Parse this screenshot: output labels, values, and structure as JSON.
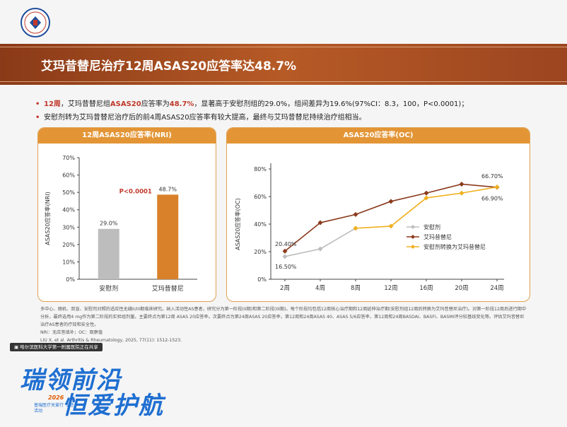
{
  "header": {
    "title": "艾玛昔替尼治疗12周ASAS20应答率达48.7%"
  },
  "bullets": [
    {
      "parts": [
        {
          "text": "12周",
          "highlight": true
        },
        {
          "text": "，艾玛昔替尼组",
          "highlight": false
        },
        {
          "text": "ASAS20",
          "highlight": true
        },
        {
          "text": "应答率为",
          "highlight": false
        },
        {
          "text": "48.7%",
          "highlight": true
        },
        {
          "text": "，显著高于安慰剂组的29.0%，组间差异为19.6%(97%CI：8.3，100，P<0.0001)；",
          "highlight": false
        }
      ]
    },
    {
      "parts": [
        {
          "text": "安慰剂转为艾玛昔替尼治疗后的前4周ASAS20应答率有较大提高，最终与艾玛昔替尼持续治疗组相当。",
          "highlight": false
        }
      ]
    }
  ],
  "left_panel": {
    "header": "12周ASAS20应答率(NRI)"
  },
  "right_panel": {
    "header": "ASAS20应答率(OC)"
  },
  "chart_data": [
    {
      "type": "bar",
      "title": "12周ASAS20应答率(NRI)",
      "ylabel": "ASAS20应答率(NRI)",
      "xlabel": "",
      "categories": [
        "安慰剂",
        "艾玛昔替尼"
      ],
      "values": [
        29.0,
        48.7
      ],
      "value_labels": [
        "29.0%",
        "48.7%"
      ],
      "colors": [
        "#bdbdbd",
        "#d9812a"
      ],
      "annotation": "P<0.0001",
      "ylim": [
        0,
        70
      ],
      "yticks": [
        0,
        10,
        20,
        30,
        40,
        50,
        60,
        70
      ],
      "ytick_labels": [
        "0%",
        "10%",
        "20%",
        "30%",
        "40%",
        "50%",
        "60%",
        "70%"
      ],
      "grid": false
    },
    {
      "type": "line",
      "title": "ASAS20应答率(OC)",
      "ylabel": "ASAS20应答率(OC)",
      "xlabel": "",
      "categories": [
        "2周",
        "4周",
        "8周",
        "12周",
        "16周",
        "20周",
        "24周"
      ],
      "ylim": [
        0,
        80
      ],
      "yticks": [
        0,
        20,
        40,
        60,
        80
      ],
      "ytick_labels": [
        "0%",
        "20%",
        "40%",
        "60%",
        "80%"
      ],
      "grid": false,
      "legend_position": "lower-right",
      "series": [
        {
          "name": "安慰剂",
          "color": "#bdbdbd",
          "marker": "diamond",
          "values": [
            16.5,
            22,
            37,
            null,
            null,
            null,
            null
          ]
        },
        {
          "name": "艾玛昔替尼",
          "color": "#8b3a1e",
          "marker": "diamond",
          "values": [
            20.4,
            41,
            47,
            56.5,
            62.5,
            69,
            66.7
          ]
        },
        {
          "name": "安慰剂转换为艾玛昔替尼",
          "color": "#f0b020",
          "marker": "diamond",
          "values": [
            null,
            null,
            37,
            38.5,
            59,
            62.5,
            66.9
          ]
        }
      ],
      "annotations": [
        {
          "text": "20.40%"
        },
        {
          "text": "16.50%"
        },
        {
          "text": "66.70%"
        },
        {
          "text": "66.90%"
        }
      ]
    }
  ],
  "notes": {
    "line1": "多中心、随机、双盲、安慰剂对照的适应性无缝II/III期临床研究。纳入活动性AS患者，研究分为第一阶段(II期)和第二阶段(III期)。每个阶段均包括12周核心治疗期和12周延伸治疗期(安慰剂组12周后转换为艾玛昔替尼治疗)。对第一阶段12周后进行期中分析，最终选用4 mg作为第二阶段的实验组剂量。主要终点为第12周 ASAS 20应答率。次要终点为第24周ASAS 20应答率，第12周和24周ASAS 40、ASAS 5/6应答率，第12周和24周BASDAI、BASFI、BASMI评分较基线变化等。评估艾玛昔替尼治疗AS患者的疗效和安全性。",
    "line2": "NRI：无应答填补；OC：观察值",
    "line3": "LIU X, et al. Arthritis & Rheumatology, 2025, 77(11): 1512-1523."
  },
  "live_tag": "哈尔滨医科大学第一附属医院正在共享",
  "promo": {
    "line1": "瑞领前沿",
    "line2": "恒爱护航",
    "year": "2026",
    "sub": "普瑞医疗关爱行 专题活动"
  }
}
